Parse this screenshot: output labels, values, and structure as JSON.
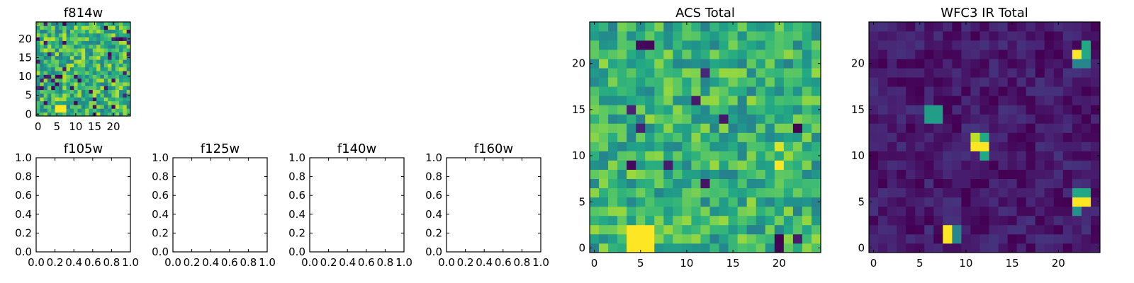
{
  "chart_data": [
    {
      "id": "f814w",
      "type": "heatmap",
      "title": "f814w",
      "colormap": "viridis",
      "grid_size": [
        25,
        25
      ],
      "seed": 11,
      "base": 0.66,
      "noise": 0.5,
      "dark_fraction": 0.07,
      "blobs": [
        {
          "x": 5,
          "y": 1,
          "w": 3,
          "h": 2,
          "v": 1.0
        }
      ],
      "xlim": [
        -0.5,
        24.5
      ],
      "ylim": [
        -0.5,
        24.5
      ],
      "xticks": [
        0,
        5,
        10,
        15,
        20
      ],
      "yticks": [
        0,
        5,
        10,
        15,
        20
      ]
    },
    {
      "id": "f105w",
      "type": "empty",
      "title": "f105w",
      "xlim": [
        0,
        1
      ],
      "ylim": [
        0,
        1
      ],
      "xticks": [
        0.0,
        0.2,
        0.4,
        0.6,
        0.8,
        1.0
      ],
      "yticks": [
        0.0,
        0.2,
        0.4,
        0.6,
        0.8,
        1.0
      ],
      "xtick_labels": [
        "0.0",
        "0.2",
        "0.4",
        "0.6",
        "0.8",
        "1.0"
      ],
      "ytick_labels": [
        "0.0",
        "0.2",
        "0.4",
        "0.6",
        "0.8",
        "1.0"
      ]
    },
    {
      "id": "f125w",
      "type": "empty",
      "title": "f125w",
      "xlim": [
        0,
        1
      ],
      "ylim": [
        0,
        1
      ],
      "xticks": [
        0.0,
        0.2,
        0.4,
        0.6,
        0.8,
        1.0
      ],
      "yticks": [
        0.0,
        0.2,
        0.4,
        0.6,
        0.8,
        1.0
      ],
      "xtick_labels": [
        "0.0",
        "0.2",
        "0.4",
        "0.6",
        "0.8",
        "1.0"
      ],
      "ytick_labels": [
        "0.0",
        "0.2",
        "0.4",
        "0.6",
        "0.8",
        "1.0"
      ]
    },
    {
      "id": "f140w",
      "type": "empty",
      "title": "f140w",
      "xlim": [
        0,
        1
      ],
      "ylim": [
        0,
        1
      ],
      "xticks": [
        0.0,
        0.2,
        0.4,
        0.6,
        0.8,
        1.0
      ],
      "yticks": [
        0.0,
        0.2,
        0.4,
        0.6,
        0.8,
        1.0
      ],
      "xtick_labels": [
        "0.0",
        "0.2",
        "0.4",
        "0.6",
        "0.8",
        "1.0"
      ],
      "ytick_labels": [
        "0.0",
        "0.2",
        "0.4",
        "0.6",
        "0.8",
        "1.0"
      ]
    },
    {
      "id": "f160w",
      "type": "empty",
      "title": "f160w",
      "xlim": [
        0,
        1
      ],
      "ylim": [
        0,
        1
      ],
      "xticks": [
        0.0,
        0.2,
        0.4,
        0.6,
        0.8,
        1.0
      ],
      "yticks": [
        0.0,
        0.2,
        0.4,
        0.6,
        0.8,
        1.0
      ],
      "xtick_labels": [
        "0.0",
        "0.2",
        "0.4",
        "0.6",
        "0.8",
        "1.0"
      ],
      "ytick_labels": [
        "0.0",
        "0.2",
        "0.4",
        "0.6",
        "0.8",
        "1.0"
      ]
    },
    {
      "id": "acs-total",
      "type": "heatmap",
      "title": "ACS Total",
      "colormap": "viridis",
      "grid_size": [
        25,
        25
      ],
      "seed": 7,
      "base": 0.64,
      "noise": 0.42,
      "dark_fraction": 0.025,
      "blobs": [
        {
          "x": 4,
          "y": 0,
          "w": 3,
          "h": 3,
          "v": 1.0
        },
        {
          "x": 20,
          "y": 9,
          "w": 1,
          "h": 1,
          "v": 1.0
        },
        {
          "x": 20,
          "y": 11,
          "w": 1,
          "h": 1,
          "v": 0.95
        }
      ],
      "xlim": [
        -0.5,
        24.5
      ],
      "ylim": [
        -0.5,
        24.5
      ],
      "xticks": [
        0,
        5,
        10,
        15,
        20
      ],
      "yticks": [
        0,
        5,
        10,
        15,
        20
      ]
    },
    {
      "id": "wfc3-ir-total",
      "type": "heatmap",
      "title": "WFC3 IR Total",
      "colormap": "viridis",
      "grid_size": [
        25,
        25
      ],
      "seed": 3,
      "base": 0.07,
      "noise": 0.16,
      "dark_fraction": 0.0,
      "blobs": [
        {
          "x": 6,
          "y": 14,
          "w": 2,
          "h": 2,
          "v": 0.55
        },
        {
          "x": 11,
          "y": 11,
          "w": 2,
          "h": 1,
          "v": 1.0
        },
        {
          "x": 11,
          "y": 12,
          "w": 1,
          "h": 1,
          "v": 0.9
        },
        {
          "x": 12,
          "y": 12,
          "w": 1,
          "h": 1,
          "v": 0.6
        },
        {
          "x": 12,
          "y": 10,
          "w": 1,
          "h": 1,
          "v": 0.6
        },
        {
          "x": 8,
          "y": 1,
          "w": 1,
          "h": 2,
          "v": 1.0
        },
        {
          "x": 9,
          "y": 1,
          "w": 1,
          "h": 2,
          "v": 0.45
        },
        {
          "x": 22,
          "y": 5,
          "w": 2,
          "h": 1,
          "v": 1.0
        },
        {
          "x": 22,
          "y": 6,
          "w": 2,
          "h": 1,
          "v": 0.6
        },
        {
          "x": 22,
          "y": 4,
          "w": 1,
          "h": 1,
          "v": 0.5
        },
        {
          "x": 22,
          "y": 21,
          "w": 1,
          "h": 1,
          "v": 1.0
        },
        {
          "x": 23,
          "y": 21,
          "w": 1,
          "h": 2,
          "v": 0.6
        },
        {
          "x": 22,
          "y": 20,
          "w": 2,
          "h": 1,
          "v": 0.45
        }
      ],
      "xlim": [
        -0.5,
        24.5
      ],
      "ylim": [
        -0.5,
        24.5
      ],
      "xticks": [
        0,
        5,
        10,
        15,
        20
      ],
      "yticks": [
        0,
        5,
        10,
        15,
        20
      ]
    }
  ]
}
